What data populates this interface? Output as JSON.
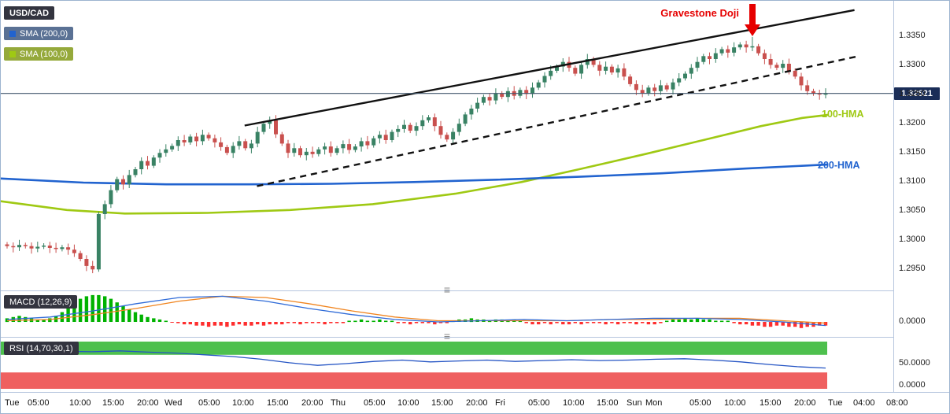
{
  "legend": {
    "symbol": "USD/CAD",
    "sma200": "SMA (200,0)",
    "sma100": "SMA (100,0)"
  },
  "panels": {
    "macd_label": "MACD (12,26,9)",
    "rsi_label": "RSI (14,70,30,1)"
  },
  "annotation": {
    "text": "Gravestone Doji"
  },
  "overlay_labels": {
    "hma100": "100-HMA",
    "hma200": "200-HMA"
  },
  "price_axis": {
    "last_price_label": "1.32521"
  },
  "icons": {
    "resize_handle": "≡",
    "down_arrow": "▼"
  },
  "colors": {
    "up_candle": "#398264",
    "down_candle": "#c9504e",
    "sma100_line": "#9fc913",
    "sma200_line": "#2163cf",
    "trendline": "#111111",
    "price_line": "#40566c",
    "price_badge_bg": "#1a2d57",
    "annotation_red": "#e60000",
    "macd_hist_up": "#00b200",
    "macd_hist_down": "#fe2e2e",
    "macd_line": "#2f6bd8",
    "signal_line": "#f0841e",
    "rsi_line": "#2454c4",
    "rsi_overbought_band": "#4ec04e",
    "rsi_oversold_band": "#ef6060",
    "badge_dark": "#33343f",
    "sma200_badge_bg": "#5a7194",
    "sma100_badge_bg": "#95a93b",
    "panel_border": "#b6c6de"
  },
  "time_axis": {
    "labels": [
      {
        "t": "Tue",
        "x": 0.004
      },
      {
        "t": "05:00",
        "x": 0.03
      },
      {
        "t": "10:00",
        "x": 0.077
      },
      {
        "t": "15:00",
        "x": 0.114
      },
      {
        "t": "20:00",
        "x": 0.152
      },
      {
        "t": "Wed",
        "x": 0.183
      },
      {
        "t": "05:00",
        "x": 0.221
      },
      {
        "t": "10:00",
        "x": 0.259
      },
      {
        "t": "15:00",
        "x": 0.298
      },
      {
        "t": "20:00",
        "x": 0.337
      },
      {
        "t": "Thu",
        "x": 0.369
      },
      {
        "t": "05:00",
        "x": 0.406
      },
      {
        "t": "10:00",
        "x": 0.444
      },
      {
        "t": "15:00",
        "x": 0.482
      },
      {
        "t": "20:00",
        "x": 0.521
      },
      {
        "t": "Fri",
        "x": 0.553
      },
      {
        "t": "05:00",
        "x": 0.59
      },
      {
        "t": "10:00",
        "x": 0.629
      },
      {
        "t": "15:00",
        "x": 0.667
      },
      {
        "t": "Sun",
        "x": 0.7
      },
      {
        "t": "Mon",
        "x": 0.722
      },
      {
        "t": "05:00",
        "x": 0.771
      },
      {
        "t": "10:00",
        "x": 0.81
      },
      {
        "t": "15:00",
        "x": 0.849
      },
      {
        "t": "20:00",
        "x": 0.888
      },
      {
        "t": "Tue",
        "x": 0.926
      },
      {
        "t": "04:00",
        "x": 0.954
      },
      {
        "t": "08:00",
        "x": 0.991
      }
    ]
  },
  "chart_data": [
    {
      "type": "candlestick",
      "title": "USD/CAD",
      "last_price": 1.32521,
      "wick_pad": 0.0004,
      "y_axis": {
        "max": 1.3411,
        "min": 1.2914,
        "ticks": [
          1.335,
          1.33,
          1.325,
          1.32,
          1.315,
          1.31,
          1.305,
          1.3,
          1.295
        ]
      },
      "closes": [
        1.299,
        1.2988,
        1.2992,
        1.299,
        1.2986,
        1.2989,
        1.2991,
        1.2987,
        1.2985,
        1.2988,
        1.2984,
        1.2978,
        1.2968,
        1.2956,
        1.295,
        1.3045,
        1.3062,
        1.3086,
        1.3105,
        1.3096,
        1.3112,
        1.3122,
        1.3136,
        1.3128,
        1.3142,
        1.315,
        1.3156,
        1.3162,
        1.3172,
        1.3168,
        1.3178,
        1.317,
        1.3181,
        1.3175,
        1.3168,
        1.316,
        1.315,
        1.3162,
        1.317,
        1.3158,
        1.3166,
        1.3186,
        1.32,
        1.3206,
        1.3182,
        1.3166,
        1.315,
        1.3158,
        1.3146,
        1.3152,
        1.3148,
        1.3156,
        1.3161,
        1.315,
        1.3158,
        1.3165,
        1.3155,
        1.3161,
        1.317,
        1.3163,
        1.3175,
        1.3181,
        1.3172,
        1.3186,
        1.3191,
        1.3198,
        1.3188,
        1.3196,
        1.3206,
        1.3211,
        1.3196,
        1.3181,
        1.3173,
        1.3186,
        1.32,
        1.3216,
        1.3226,
        1.3236,
        1.3246,
        1.324,
        1.3252,
        1.3246,
        1.3256,
        1.3248,
        1.3258,
        1.3251,
        1.3262,
        1.3271,
        1.3282,
        1.3291,
        1.3298,
        1.3306,
        1.3296,
        1.3286,
        1.3301,
        1.3311,
        1.3301,
        1.3291,
        1.3298,
        1.3288,
        1.3295,
        1.3281,
        1.3268,
        1.3258,
        1.3252,
        1.3262,
        1.3256,
        1.3266,
        1.3259,
        1.3271,
        1.3278,
        1.3286,
        1.3296,
        1.3306,
        1.3316,
        1.3311,
        1.3321,
        1.3328,
        1.3322,
        1.3331,
        1.3336,
        1.3331,
        1.3333,
        1.3321,
        1.3311,
        1.3301,
        1.3296,
        1.3303,
        1.3291,
        1.3281,
        1.3266,
        1.3256,
        1.3252,
        1.325,
        1.32521
      ],
      "special_candles": [
        {
          "index": 122,
          "name": "gravestone-doji",
          "high": 1.3349
        }
      ],
      "overlays": [
        {
          "name": "100-HMA",
          "color_key": "sma100_line",
          "points": [
            [
              0,
              1.3067
            ],
            [
              0.08,
              1.3052
            ],
            [
              0.15,
              1.3046
            ],
            [
              0.25,
              1.3047
            ],
            [
              0.35,
              1.3052
            ],
            [
              0.45,
              1.3062
            ],
            [
              0.55,
              1.308
            ],
            [
              0.63,
              1.31
            ],
            [
              0.7,
              1.3122
            ],
            [
              0.78,
              1.3148
            ],
            [
              0.85,
              1.3172
            ],
            [
              0.92,
              1.3196
            ],
            [
              0.97,
              1.321
            ],
            [
              1.0,
              1.3215
            ]
          ]
        },
        {
          "name": "200-HMA",
          "color_key": "sma200_line",
          "points": [
            [
              0,
              1.3106
            ],
            [
              0.1,
              1.3099
            ],
            [
              0.2,
              1.3096
            ],
            [
              0.3,
              1.3096
            ],
            [
              0.4,
              1.3097
            ],
            [
              0.5,
              1.31
            ],
            [
              0.6,
              1.3104
            ],
            [
              0.7,
              1.3109
            ],
            [
              0.8,
              1.3115
            ],
            [
              0.9,
              1.3123
            ],
            [
              1.0,
              1.313
            ]
          ]
        }
      ],
      "trendlines": [
        {
          "style": "solid",
          "from": [
            0.295,
            1.3197
          ],
          "to": [
            1.033,
            1.3395
          ]
        },
        {
          "style": "dashed",
          "from": [
            0.31,
            1.3093
          ],
          "to": [
            1.038,
            1.3316
          ]
        }
      ],
      "annotations": [
        {
          "text": "Gravestone Doji",
          "arrow_index": 122
        }
      ]
    },
    {
      "type": "macd",
      "label": "MACD (12,26,9)",
      "params": [
        12,
        26,
        9
      ],
      "zero_label": "0.0000",
      "value_scale": 0.0001,
      "histogram_units": [
        3,
        4,
        5,
        4,
        3,
        2,
        2,
        3,
        5,
        8,
        12,
        16,
        19,
        21,
        22,
        22,
        21,
        19,
        16,
        13,
        10,
        8,
        6,
        4,
        3,
        2,
        1,
        0,
        -1,
        -2,
        -2,
        -3,
        -3,
        -4,
        -3,
        -3,
        -4,
        -3,
        -2,
        -3,
        -3,
        -2,
        -3,
        -2,
        -2,
        -2,
        -1,
        -1,
        -2,
        -1,
        -1,
        -1,
        -2,
        -1,
        -1,
        -1,
        1,
        1,
        2,
        1,
        1,
        2,
        1,
        1,
        -1,
        -1,
        -2,
        -1,
        -1,
        -1,
        -2,
        -1,
        -1,
        1,
        2,
        2,
        3,
        2,
        2,
        1,
        2,
        2,
        1,
        2,
        1,
        -1,
        -2,
        -2,
        -1,
        -2,
        -1,
        -2,
        -2,
        -1,
        -2,
        -1,
        -1,
        -1,
        -2,
        -1,
        -2,
        -1,
        -1,
        -2,
        -1,
        -2,
        -2,
        -1,
        1,
        2,
        2,
        3,
        2,
        3,
        2,
        2,
        1,
        1,
        1,
        -1,
        -2,
        -2,
        -3,
        -3,
        -4,
        -4,
        -3,
        -3,
        -4,
        -4,
        -5,
        -4,
        -4,
        -3,
        -3
      ],
      "macd_line_units": [
        2,
        4,
        9,
        15,
        20,
        21,
        17,
        11,
        6,
        2,
        0,
        1,
        2,
        1,
        2,
        3,
        3,
        2,
        0,
        -3
      ],
      "signal_line_units": [
        1,
        2,
        6,
        11,
        17,
        21,
        20,
        15,
        9,
        4,
        1,
        1,
        1,
        1,
        2,
        2,
        3,
        3,
        1,
        -1
      ]
    },
    {
      "type": "rsi",
      "label": "RSI (14,70,30,1)",
      "params": [
        14,
        70,
        30,
        1
      ],
      "overbought": 70,
      "oversold": 30,
      "axis_ticks": [
        50,
        0
      ],
      "values": [
        72,
        76,
        78,
        77,
        79,
        76,
        74,
        70,
        66,
        60,
        52,
        46,
        50,
        55,
        58,
        54,
        56,
        58,
        55,
        57,
        59,
        57,
        58,
        60,
        61,
        58,
        54,
        48,
        43,
        40
      ]
    }
  ]
}
